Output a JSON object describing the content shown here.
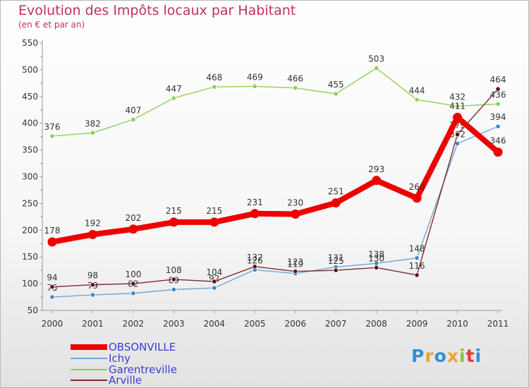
{
  "chart_data": {
    "type": "line",
    "title": "Evolution des Impôts locaux par Habitant",
    "subtitle": "(en € et par an)",
    "categories": [
      "2000",
      "2001",
      "2002",
      "2003",
      "2004",
      "2005",
      "2006",
      "2007",
      "2008",
      "2009",
      "2010",
      "2011"
    ],
    "y_ticks": [
      "50",
      "100",
      "150",
      "200",
      "250",
      "300",
      "350",
      "400",
      "450",
      "500",
      "550"
    ],
    "ylim": [
      50,
      550
    ],
    "grid": false,
    "legend_position": "bottom-left",
    "series": [
      {
        "name": "Garentreville",
        "color": "#8ed05a",
        "width": 1.4,
        "marker_fill": "#8ed05a",
        "values": [
          376,
          382,
          407,
          447,
          468,
          469,
          466,
          455,
          503,
          444,
          432,
          436
        ],
        "labels": [
          "376",
          "382",
          "407",
          "447",
          "468",
          "469",
          "466",
          "455",
          "503",
          "444",
          "432",
          "436"
        ]
      },
      {
        "name": "Ichy",
        "color": "#6ea6d6",
        "width": 1.4,
        "marker_fill": "#3f86c6",
        "values": [
          75,
          79,
          82,
          89,
          92,
          126,
          119,
          131,
          138,
          148,
          362,
          394
        ],
        "labels": [
          "75",
          "79",
          "82",
          "89",
          "92",
          "126",
          "119",
          "131",
          "138",
          "148",
          "362",
          "394"
        ]
      },
      {
        "name": "Arville",
        "color": "#7a2c30",
        "width": 1.4,
        "marker_fill": "#5a1418",
        "values": [
          94,
          98,
          100,
          108,
          104,
          132,
          123,
          125,
          130,
          116,
          379,
          464
        ],
        "labels": [
          "94",
          "98",
          "100",
          "108",
          "104",
          "132",
          "123",
          "125",
          "130",
          "116",
          "379",
          "464"
        ]
      },
      {
        "name": "OBSONVILLE",
        "color": "#ee0000",
        "width": 8,
        "marker_fill": "#ee0000",
        "values": [
          178,
          192,
          202,
          215,
          215,
          231,
          230,
          251,
          293,
          260,
          411,
          346
        ],
        "labels": [
          "178",
          "192",
          "202",
          "215",
          "215",
          "231",
          "230",
          "251",
          "293",
          "260",
          "411",
          "346"
        ]
      }
    ],
    "legend": [
      "OBSONVILLE",
      "Ichy",
      "Garentreville",
      "Arville"
    ]
  },
  "branding": {
    "logo_text": "Proxiti",
    "logo_colors": [
      "#2f8fd8",
      "#f2a12a",
      "#2f8fd8",
      "#f2a12a",
      "#8cc43c",
      "#e23c3c",
      "#2f8fd8"
    ]
  }
}
